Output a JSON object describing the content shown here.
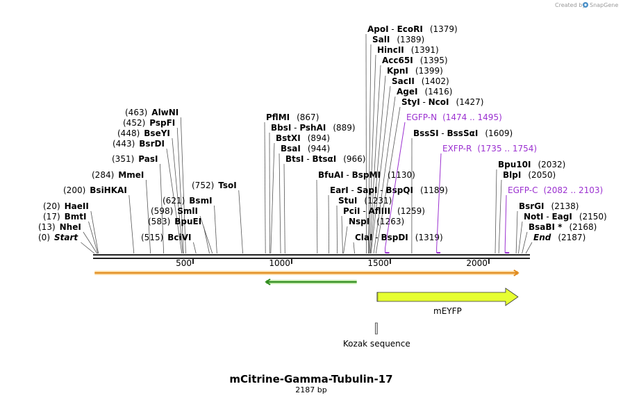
{
  "credit": {
    "prefix": "Created by",
    "brand": "SnapGene"
  },
  "title": "mCitrine-Gamma-Tubulin-17",
  "length_label": "2187 bp",
  "sequence_length": 2187,
  "ticks": [
    500,
    1000,
    1500,
    2000
  ],
  "sites": [
    {
      "id": "s0",
      "parts": [
        {
          "t": "(0)",
          "c": "pos"
        },
        {
          "t": "Start",
          "c": "end"
        }
      ],
      "cuts": [
        0
      ]
    },
    {
      "id": "s1",
      "parts": [
        {
          "t": "(13)",
          "c": "pos"
        },
        {
          "t": "NheI",
          "c": "enz"
        }
      ],
      "cuts": [
        13
      ]
    },
    {
      "id": "s2",
      "parts": [
        {
          "t": "(17)",
          "c": "pos"
        },
        {
          "t": "BmtI",
          "c": "enz"
        }
      ],
      "cuts": [
        17
      ]
    },
    {
      "id": "s3",
      "parts": [
        {
          "t": "(20)",
          "c": "pos"
        },
        {
          "t": "HaeII",
          "c": "enz"
        }
      ],
      "cuts": [
        20
      ]
    },
    {
      "id": "s4",
      "parts": [
        {
          "t": "(200)",
          "c": "pos"
        },
        {
          "t": "BsiHKAI",
          "c": "enz"
        }
      ],
      "cuts": [
        200
      ]
    },
    {
      "id": "s5",
      "parts": [
        {
          "t": "(284)",
          "c": "pos"
        },
        {
          "t": "MmeI",
          "c": "enz"
        }
      ],
      "cuts": [
        284
      ]
    },
    {
      "id": "s6",
      "parts": [
        {
          "t": "(351)",
          "c": "pos"
        },
        {
          "t": "PasI",
          "c": "enz"
        }
      ],
      "cuts": [
        351
      ]
    },
    {
      "id": "s7",
      "parts": [
        {
          "t": "(443)",
          "c": "pos"
        },
        {
          "t": "BsrDI",
          "c": "enz"
        }
      ],
      "cuts": [
        443
      ]
    },
    {
      "id": "s8",
      "parts": [
        {
          "t": "(448)",
          "c": "pos"
        },
        {
          "t": "BseYI",
          "c": "enz"
        }
      ],
      "cuts": [
        448
      ]
    },
    {
      "id": "s9",
      "parts": [
        {
          "t": "(452)",
          "c": "pos"
        },
        {
          "t": "PspFI",
          "c": "enz"
        }
      ],
      "cuts": [
        452
      ]
    },
    {
      "id": "s10",
      "parts": [
        {
          "t": "(463)",
          "c": "pos"
        },
        {
          "t": "AlwNI",
          "c": "enz"
        }
      ],
      "cuts": [
        463
      ]
    },
    {
      "id": "s11",
      "parts": [
        {
          "t": "(515)",
          "c": "pos"
        },
        {
          "t": "BciVI",
          "c": "enz"
        }
      ],
      "cuts": [
        515
      ]
    },
    {
      "id": "s12",
      "parts": [
        {
          "t": "(583)",
          "c": "pos"
        },
        {
          "t": "BpuEI",
          "c": "enz"
        }
      ],
      "cuts": [
        583
      ]
    },
    {
      "id": "s13",
      "parts": [
        {
          "t": "(598)",
          "c": "pos"
        },
        {
          "t": "SmlI",
          "c": "enz"
        }
      ],
      "cuts": [
        598
      ]
    },
    {
      "id": "s14",
      "parts": [
        {
          "t": "(621)",
          "c": "pos"
        },
        {
          "t": "BsmI",
          "c": "enz"
        }
      ],
      "cuts": [
        621
      ]
    },
    {
      "id": "s15",
      "parts": [
        {
          "t": "(752)",
          "c": "pos"
        },
        {
          "t": "TsoI",
          "c": "enz"
        }
      ],
      "cuts": [
        752
      ]
    },
    {
      "id": "s16",
      "parts": [
        {
          "t": "PflMI",
          "c": "enz"
        },
        {
          "t": "(867)",
          "c": "pos"
        }
      ],
      "cuts": [
        867
      ]
    },
    {
      "id": "s17",
      "parts": [
        {
          "t": "BbsI",
          "c": "enz"
        },
        {
          "t": " - ",
          "c": "pos"
        },
        {
          "t": "PshAI",
          "c": "enz"
        },
        {
          "t": "(889)",
          "c": "pos"
        }
      ],
      "cuts": [
        889
      ]
    },
    {
      "id": "s18",
      "parts": [
        {
          "t": "BstXI",
          "c": "enz"
        },
        {
          "t": "(894)",
          "c": "pos"
        }
      ],
      "cuts": [
        894
      ]
    },
    {
      "id": "s19",
      "parts": [
        {
          "t": "BsaI",
          "c": "enz"
        },
        {
          "t": "(944)",
          "c": "pos"
        }
      ],
      "cuts": [
        944
      ]
    },
    {
      "id": "s20",
      "parts": [
        {
          "t": "BtsI",
          "c": "enz"
        },
        {
          "t": " - ",
          "c": "pos"
        },
        {
          "t": "BtsαI",
          "c": "enz"
        },
        {
          "t": "(966)",
          "c": "pos"
        }
      ],
      "cuts": [
        966
      ]
    },
    {
      "id": "s21",
      "parts": [
        {
          "t": "BfuAI",
          "c": "enz"
        },
        {
          "t": " - ",
          "c": "pos"
        },
        {
          "t": "BspMI",
          "c": "enz"
        },
        {
          "t": "(1130)",
          "c": "pos"
        }
      ],
      "cuts": [
        1130
      ]
    },
    {
      "id": "s22",
      "parts": [
        {
          "t": "EarI",
          "c": "enz"
        },
        {
          "t": " - ",
          "c": "pos"
        },
        {
          "t": "SapI",
          "c": "enz"
        },
        {
          "t": " - ",
          "c": "pos"
        },
        {
          "t": "BspQI",
          "c": "enz"
        },
        {
          "t": "(1189)",
          "c": "pos"
        }
      ],
      "cuts": [
        1189
      ]
    },
    {
      "id": "s23",
      "parts": [
        {
          "t": "StuI",
          "c": "enz"
        },
        {
          "t": "(1231)",
          "c": "pos"
        }
      ],
      "cuts": [
        1231
      ]
    },
    {
      "id": "s24",
      "parts": [
        {
          "t": "PciI",
          "c": "enz"
        },
        {
          "t": " - ",
          "c": "pos"
        },
        {
          "t": "AflIII",
          "c": "enz"
        },
        {
          "t": "(1259)",
          "c": "pos"
        }
      ],
      "cuts": [
        1259
      ]
    },
    {
      "id": "s25",
      "parts": [
        {
          "t": "NspI",
          "c": "enz"
        },
        {
          "t": "(1263)",
          "c": "pos"
        }
      ],
      "cuts": [
        1263
      ]
    },
    {
      "id": "s26",
      "parts": [
        {
          "t": "ClaI",
          "c": "enz"
        },
        {
          "t": " - ",
          "c": "pos"
        },
        {
          "t": "BspDI",
          "c": "enz"
        },
        {
          "t": "(1319)",
          "c": "pos"
        }
      ],
      "cuts": [
        1319
      ]
    },
    {
      "id": "s27",
      "parts": [
        {
          "t": "ApoI",
          "c": "enz"
        },
        {
          "t": " - ",
          "c": "pos"
        },
        {
          "t": "EcoRI",
          "c": "enz"
        },
        {
          "t": "(1379)",
          "c": "pos"
        }
      ],
      "cuts": [
        1379
      ]
    },
    {
      "id": "s28",
      "parts": [
        {
          "t": "SalI",
          "c": "enz"
        },
        {
          "t": "(1389)",
          "c": "pos"
        }
      ],
      "cuts": [
        1389
      ]
    },
    {
      "id": "s29",
      "parts": [
        {
          "t": "HincII",
          "c": "enz"
        },
        {
          "t": "(1391)",
          "c": "pos"
        }
      ],
      "cuts": [
        1391
      ]
    },
    {
      "id": "s30",
      "parts": [
        {
          "t": "Acc65I",
          "c": "enz"
        },
        {
          "t": "(1395)",
          "c": "pos"
        }
      ],
      "cuts": [
        1395
      ]
    },
    {
      "id": "s31",
      "parts": [
        {
          "t": "KpnI",
          "c": "enz"
        },
        {
          "t": "(1399)",
          "c": "pos"
        }
      ],
      "cuts": [
        1399
      ]
    },
    {
      "id": "s32",
      "parts": [
        {
          "t": "SacII",
          "c": "enz"
        },
        {
          "t": "(1402)",
          "c": "pos"
        }
      ],
      "cuts": [
        1402
      ]
    },
    {
      "id": "s33",
      "parts": [
        {
          "t": "AgeI",
          "c": "enz"
        },
        {
          "t": "(1416)",
          "c": "pos"
        }
      ],
      "cuts": [
        1416
      ]
    },
    {
      "id": "s34",
      "parts": [
        {
          "t": "StyI",
          "c": "enz"
        },
        {
          "t": " - ",
          "c": "pos"
        },
        {
          "t": "NcoI",
          "c": "enz"
        },
        {
          "t": "(1427)",
          "c": "pos"
        }
      ],
      "cuts": [
        1427
      ]
    },
    {
      "id": "s35",
      "parts": [
        {
          "t": "BssSI",
          "c": "enz"
        },
        {
          "t": " - ",
          "c": "pos"
        },
        {
          "t": "BssSαI",
          "c": "enz"
        },
        {
          "t": "(1609)",
          "c": "pos"
        }
      ],
      "cuts": [
        1609
      ]
    },
    {
      "id": "s36",
      "parts": [
        {
          "t": "Bpu10I",
          "c": "enz"
        },
        {
          "t": "(2032)",
          "c": "pos"
        }
      ],
      "cuts": [
        2032
      ]
    },
    {
      "id": "s37",
      "parts": [
        {
          "t": "BlpI",
          "c": "enz"
        },
        {
          "t": "(2050)",
          "c": "pos"
        }
      ],
      "cuts": [
        2050
      ]
    },
    {
      "id": "s38",
      "parts": [
        {
          "t": "BsrGI",
          "c": "enz"
        },
        {
          "t": "(2138)",
          "c": "pos"
        }
      ],
      "cuts": [
        2138
      ]
    },
    {
      "id": "s39",
      "parts": [
        {
          "t": "NotI",
          "c": "enz"
        },
        {
          "t": " - ",
          "c": "pos"
        },
        {
          "t": "EagI",
          "c": "enz"
        },
        {
          "t": "(2150)",
          "c": "pos"
        }
      ],
      "cuts": [
        2150
      ]
    },
    {
      "id": "s40",
      "parts": [
        {
          "t": "BsaBI *",
          "c": "enz"
        },
        {
          "t": "(2168)",
          "c": "pos"
        }
      ],
      "cuts": [
        2168
      ]
    },
    {
      "id": "s41",
      "parts": [
        {
          "t": "End",
          "c": "end"
        },
        {
          "t": "(2187)",
          "c": "pos"
        }
      ],
      "cuts": [
        2187
      ]
    }
  ],
  "primers": [
    {
      "id": "p0",
      "name": "EGFP-N",
      "range": "(1474 .. 1495)",
      "start": 1474,
      "end": 1495
    },
    {
      "id": "p1",
      "name": "EXFP-R",
      "range": "(1735 .. 1754)",
      "start": 1735,
      "end": 1754
    },
    {
      "id": "p2",
      "name": "EGFP-C",
      "range": "(2082 .. 2103)",
      "start": 2082,
      "end": 2103
    }
  ],
  "features": [
    {
      "id": "f0",
      "label": "",
      "start": 1,
      "end": 2148,
      "direction": "forward",
      "kind": "orf",
      "color": "#e08a1e"
    },
    {
      "id": "f1",
      "label": "",
      "start": 870,
      "end": 1330,
      "direction": "reverse",
      "kind": "orf",
      "color": "#2e8b1e"
    },
    {
      "id": "f2",
      "label": "mEYFP",
      "start": 1433,
      "end": 2148,
      "direction": "forward",
      "kind": "cds",
      "color": "#e6ff33"
    },
    {
      "id": "f3",
      "label": "Kozak sequence",
      "start": 1424,
      "end": 1433,
      "direction": "none",
      "kind": "misc",
      "color": "#d9d9d9"
    }
  ],
  "colors": {
    "backbone": "#222222",
    "primer": "#9b30d0",
    "cut": "#555555"
  }
}
